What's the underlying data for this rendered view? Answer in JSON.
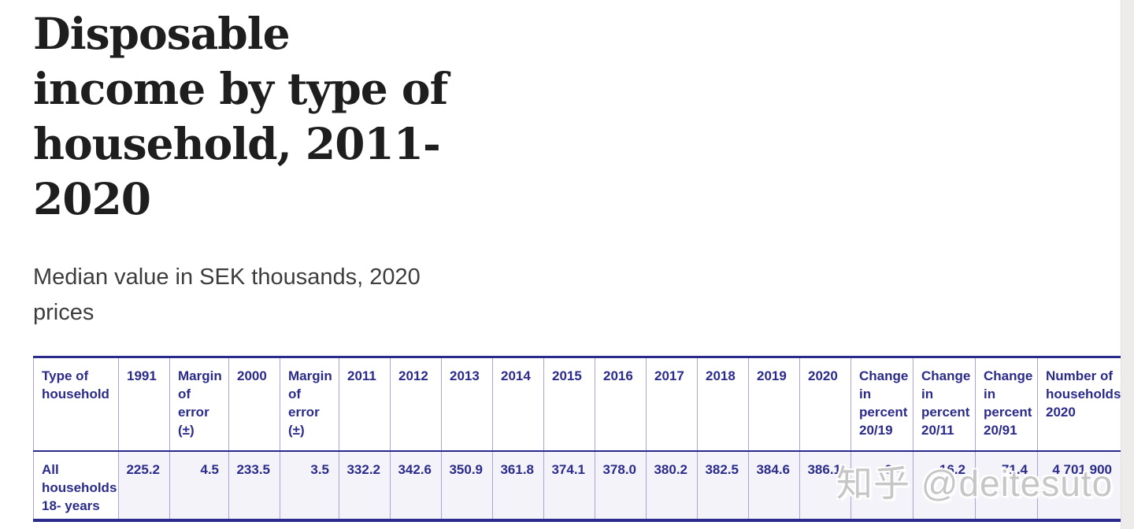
{
  "header": {
    "title": "Disposable income by type of household, 2011-2020",
    "title_lines": [
      "Disposable",
      "income by type of",
      "household, 2011-",
      "2020"
    ],
    "subtitle": "Median value in SEK thousands, 2020 prices",
    "subtitle_lines": [
      "Median value in SEK thousands, 2020",
      "prices"
    ]
  },
  "table": {
    "column_headers": [
      "Type of household",
      "1991",
      "Margin of error (±)",
      "2000",
      "Margin of error (±)",
      "2011",
      "2012",
      "2013",
      "2014",
      "2015",
      "2016",
      "2017",
      "2018",
      "2019",
      "2020",
      "Change in percent 20/19",
      "Change in percent 20/11",
      "Change in percent 20/91",
      "Number of households 2020"
    ],
    "rows": [
      {
        "label": "All households 18- years",
        "values": [
          "225.2",
          "4.5",
          "233.5",
          "3.5",
          "332.2",
          "342.6",
          "350.9",
          "361.8",
          "374.1",
          "378.0",
          "380.2",
          "382.5",
          "384.6",
          "386.1",
          "0.4",
          "16.2",
          "71.4",
          "4 701 900"
        ]
      }
    ]
  },
  "watermark": {
    "text": "知乎 @deitesuto"
  },
  "colors": {
    "title_text": "#1e1e1e",
    "subtitle_text": "#3d3d3d",
    "table_text": "#2b2b8c",
    "border_dark": "#2a2a8c",
    "border_light": "#aba4d8",
    "data_cell_bg": "#f4f3f9",
    "watermark_gray": "#c7c6c6",
    "gutter_gray": "#edeceb"
  }
}
